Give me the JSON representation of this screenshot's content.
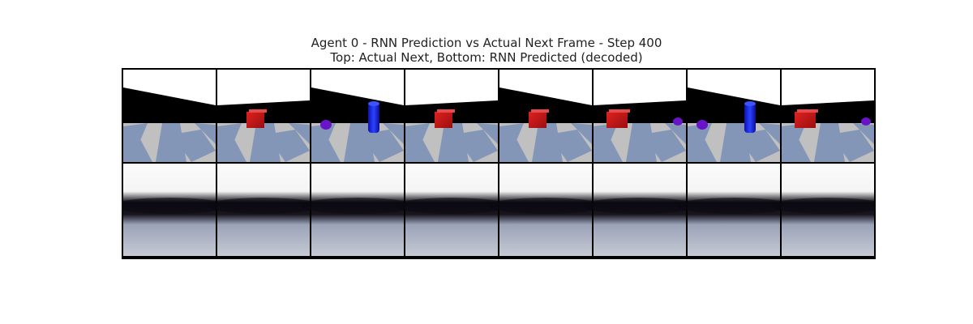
{
  "figure": {
    "title_line1": "Agent 0 - RNN Prediction vs Actual Next Frame - Step 400",
    "title_line2": "Top: Actual Next, Bottom: RNN Predicted (decoded)"
  },
  "colors": {
    "sky": "#ffffff",
    "wall": "#000000",
    "floor_light": "#c0c0c0",
    "floor_blue": "#8496b8",
    "box_red": "#cc1a1a",
    "cylinder_blue": "#1a2fe0",
    "sphere_purple": "#6a14c8",
    "pred_sky": "#fbfbfb",
    "pred_floor": "#c4c9d4",
    "border": "#000000"
  },
  "frames": {
    "actual": [
      {
        "index": 1,
        "objects": []
      },
      {
        "index": 2,
        "objects": [
          "red-box"
        ]
      },
      {
        "index": 3,
        "objects": [
          "purple-sphere",
          "blue-cylinder"
        ]
      },
      {
        "index": 4,
        "objects": [
          "red-box"
        ]
      },
      {
        "index": 5,
        "objects": [
          "red-box"
        ]
      },
      {
        "index": 6,
        "objects": [
          "red-box",
          "purple-sphere"
        ]
      },
      {
        "index": 7,
        "objects": [
          "purple-sphere",
          "blue-cylinder"
        ]
      },
      {
        "index": 8,
        "objects": [
          "red-box",
          "purple-sphere"
        ]
      }
    ],
    "predicted_count": 8
  }
}
